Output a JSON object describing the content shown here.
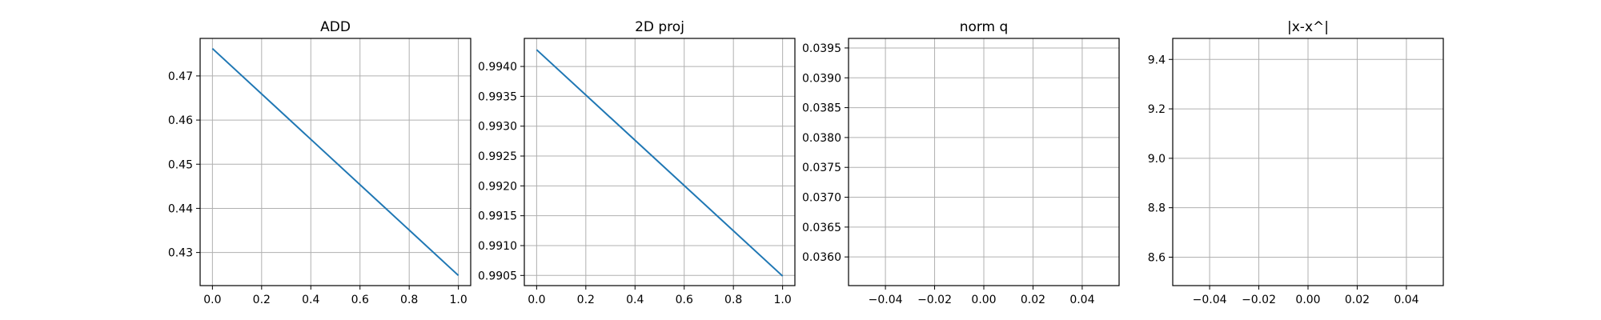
{
  "chart_data": [
    {
      "type": "line",
      "title": "ADD",
      "xlim": [
        -0.05,
        1.05
      ],
      "ylim": [
        0.4225,
        0.4785
      ],
      "grid": true,
      "xticks": [
        0.0,
        0.2,
        0.4,
        0.6,
        0.8,
        1.0
      ],
      "xtick_labels": [
        "0.0",
        "0.2",
        "0.4",
        "0.6",
        "0.8",
        "1.0"
      ],
      "yticks": [
        0.43,
        0.44,
        0.45,
        0.46,
        0.47
      ],
      "ytick_labels": [
        "0.43",
        "0.44",
        "0.45",
        "0.46",
        "0.47"
      ],
      "series": [
        {
          "x": [
            0,
            1
          ],
          "values": [
            0.4762,
            0.4248
          ],
          "color": "#1f77b4"
        }
      ]
    },
    {
      "type": "line",
      "title": "2D proj",
      "xlim": [
        -0.05,
        1.05
      ],
      "ylim": [
        0.99033,
        0.99447
      ],
      "grid": true,
      "xticks": [
        0.0,
        0.2,
        0.4,
        0.6,
        0.8,
        1.0
      ],
      "xtick_labels": [
        "0.0",
        "0.2",
        "0.4",
        "0.6",
        "0.8",
        "1.0"
      ],
      "yticks": [
        0.9905,
        0.991,
        0.9915,
        0.992,
        0.9925,
        0.993,
        0.9935,
        0.994
      ],
      "ytick_labels": [
        "0.9905",
        "0.9910",
        "0.9915",
        "0.9920",
        "0.9925",
        "0.9930",
        "0.9935",
        "0.9940"
      ],
      "series": [
        {
          "x": [
            0,
            1
          ],
          "values": [
            0.99428,
            0.99049
          ],
          "color": "#1f77b4"
        }
      ]
    },
    {
      "type": "line",
      "title": "norm q",
      "xlim": [
        -0.055,
        0.055
      ],
      "ylim": [
        0.03552,
        0.03966
      ],
      "grid": true,
      "xticks": [
        -0.04,
        -0.02,
        0.0,
        0.02,
        0.04
      ],
      "xtick_labels": [
        "−0.04",
        "−0.02",
        "0.00",
        "0.02",
        "0.04"
      ],
      "yticks": [
        0.036,
        0.0365,
        0.037,
        0.0375,
        0.038,
        0.0385,
        0.039,
        0.0395
      ],
      "ytick_labels": [
        "0.0360",
        "0.0365",
        "0.0370",
        "0.0375",
        "0.0380",
        "0.0385",
        "0.0390",
        "0.0395"
      ],
      "series": []
    },
    {
      "type": "line",
      "title": "|x-x^|",
      "xlim": [
        -0.055,
        0.055
      ],
      "ylim": [
        8.485,
        9.485
      ],
      "grid": true,
      "xticks": [
        -0.04,
        -0.02,
        0.0,
        0.02,
        0.04
      ],
      "xtick_labels": [
        "−0.04",
        "−0.02",
        "0.00",
        "0.02",
        "0.04"
      ],
      "yticks": [
        8.6,
        8.8,
        9.0,
        9.2,
        9.4
      ],
      "ytick_labels": [
        "8.6",
        "8.8",
        "9.0",
        "9.2",
        "9.4"
      ],
      "series": []
    }
  ]
}
